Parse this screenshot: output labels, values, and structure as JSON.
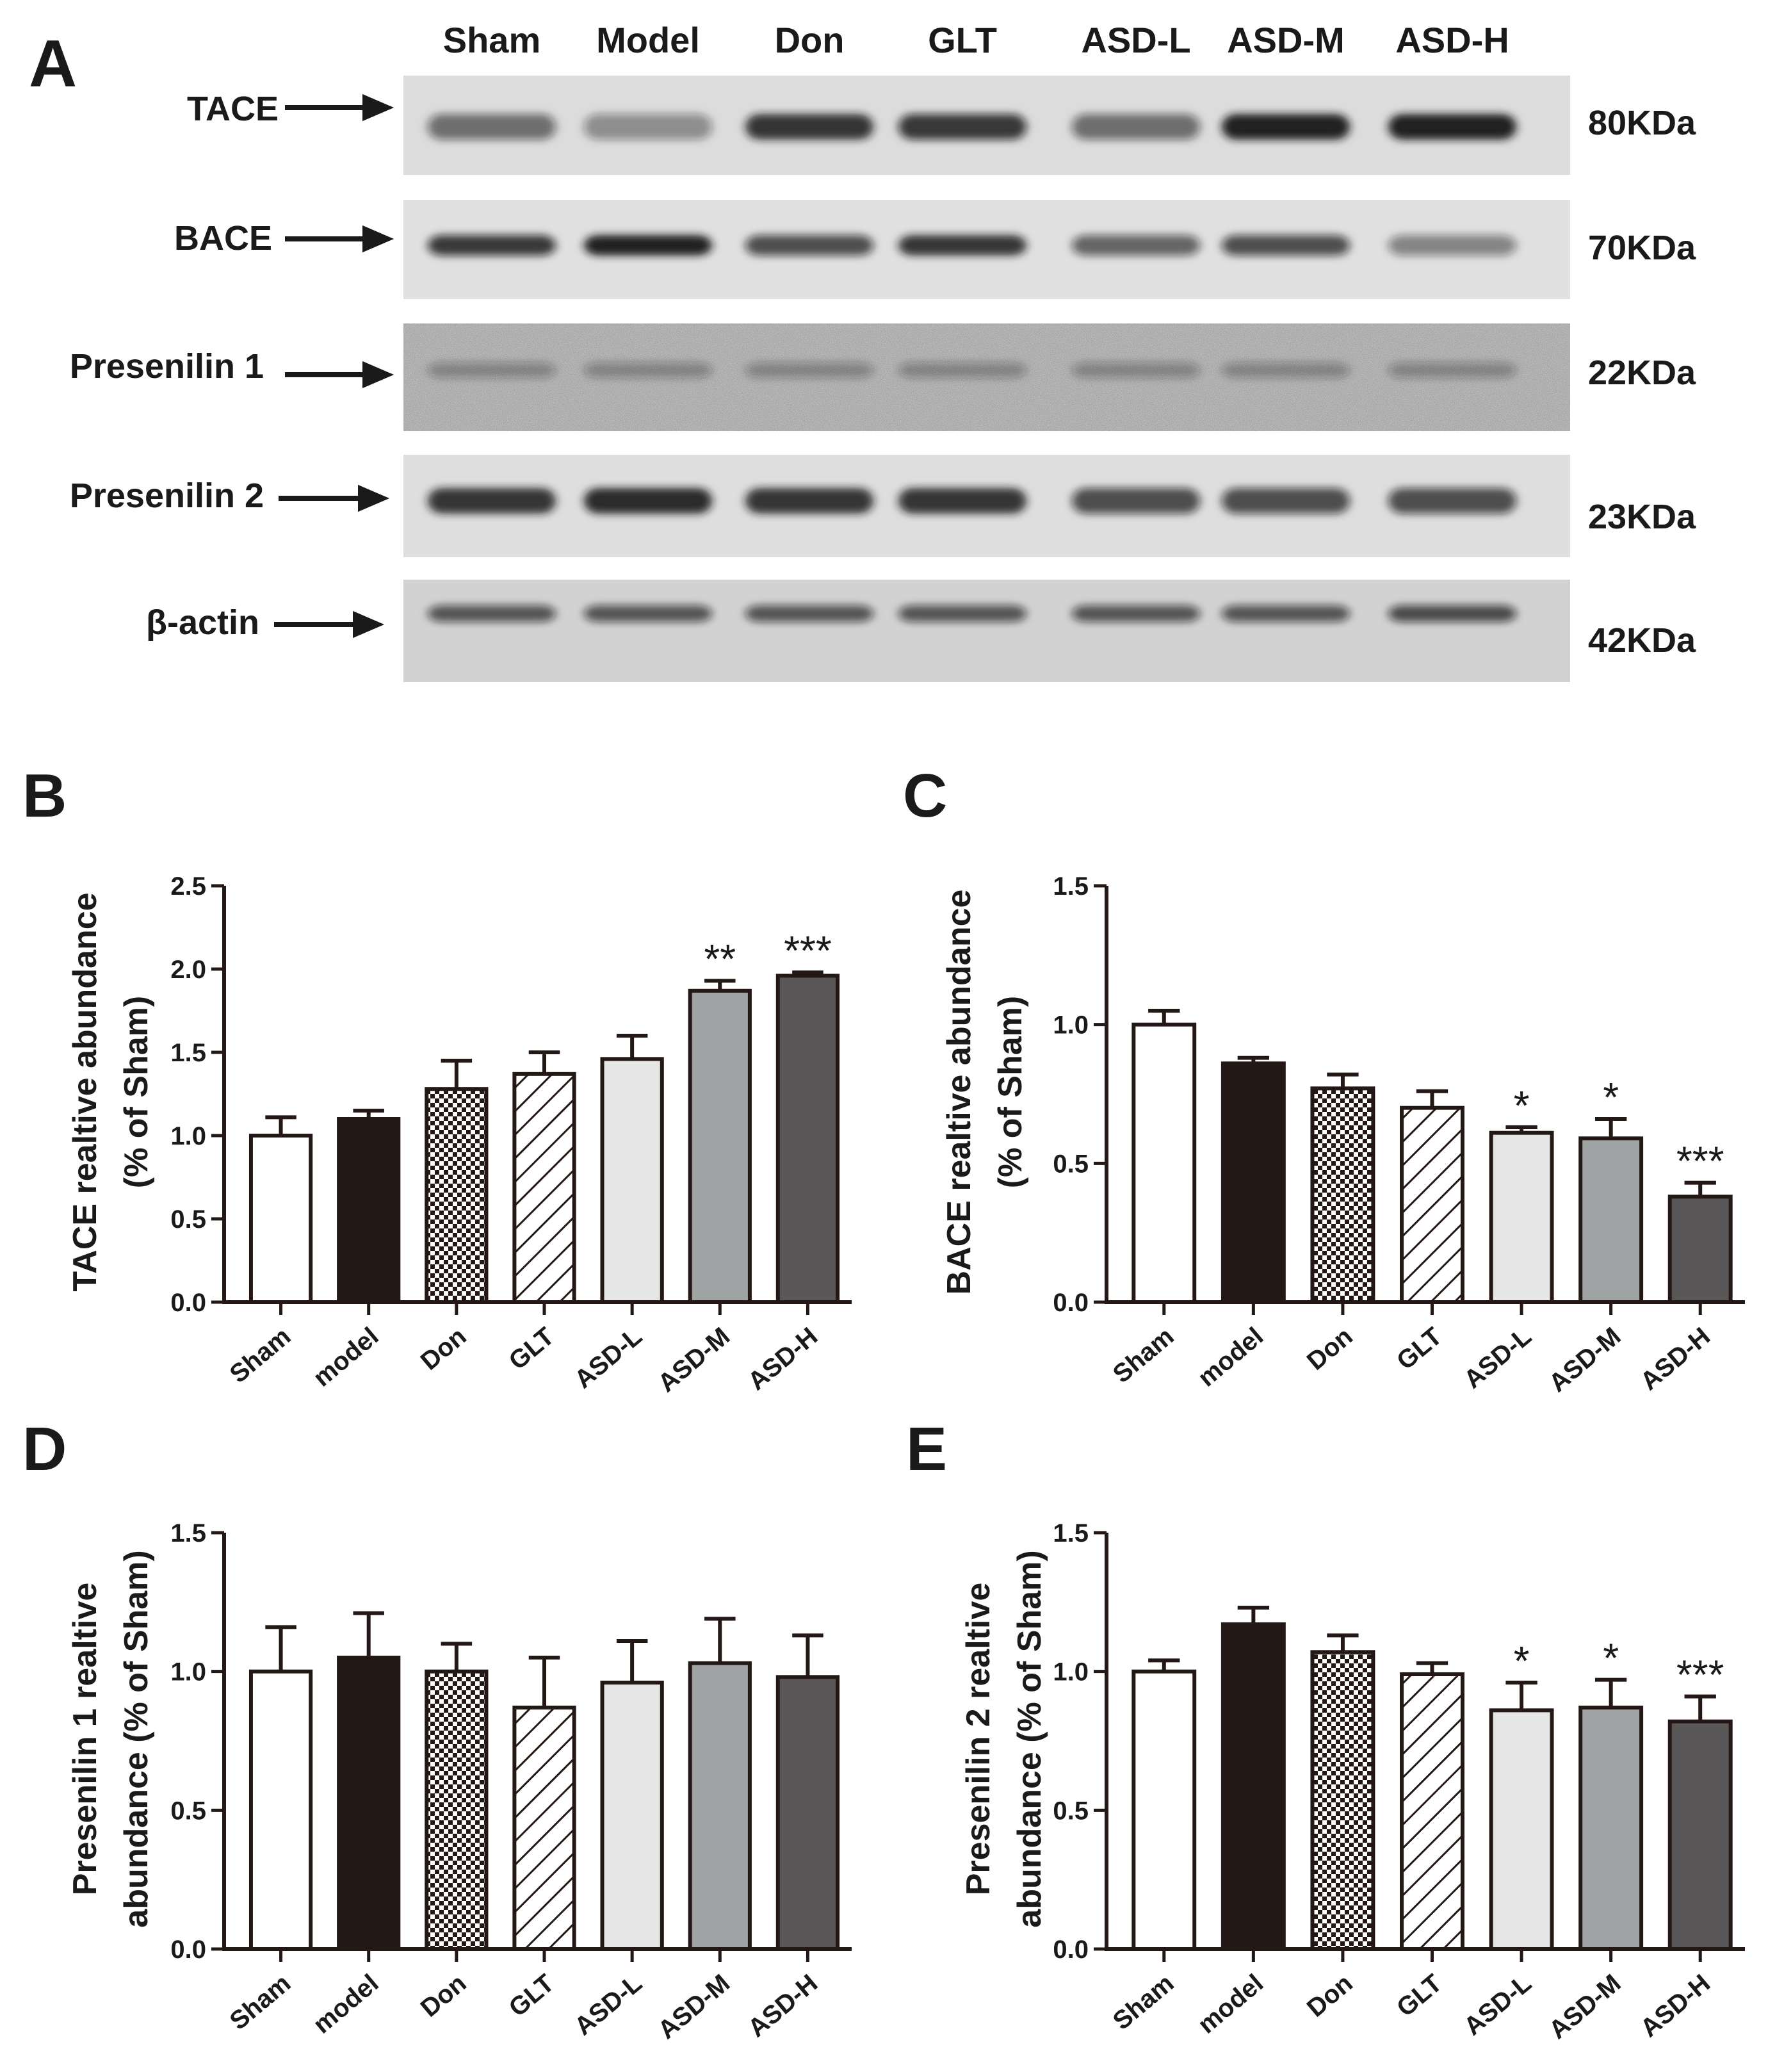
{
  "panel_a": {
    "letter": "A",
    "lanes": [
      "Sham",
      "Model",
      "Don",
      "GLT",
      "ASD-L",
      "ASD-M",
      "ASD-H"
    ],
    "rows": [
      {
        "protein": "TACE",
        "size": "80KDa"
      },
      {
        "protein": "BACE",
        "size": "70KDa"
      },
      {
        "protein": "Presenilin 1",
        "size": "22KDa"
      },
      {
        "protein": "Presenilin 2",
        "size": "23KDa"
      },
      {
        "protein": "β-actin",
        "size": "42KDa"
      }
    ]
  },
  "colors": {
    "Sham": "#ffffff",
    "model": "#231815",
    "Don": "checker",
    "GLT": "hatch",
    "ASD-L": "#e6e6e6",
    "ASD-M": "#a0a3a3",
    "ASD-H": "#595757"
  },
  "chart_data": [
    {
      "panel": "B",
      "type": "bar",
      "categories": [
        "Sham",
        "model",
        "Don",
        "GLT",
        "ASD-L",
        "ASD-M",
        "ASD-H"
      ],
      "values": [
        1.0,
        1.1,
        1.28,
        1.37,
        1.46,
        1.87,
        1.96
      ],
      "errors": [
        0.11,
        0.05,
        0.17,
        0.13,
        0.14,
        0.06,
        0.02
      ],
      "significance": [
        "",
        "",
        "",
        "",
        "",
        "**",
        "***"
      ],
      "ylabel_lines": [
        "TACE realtive abundance",
        "(% of Sham)"
      ],
      "ylim": [
        0,
        2.5
      ],
      "yticks": [
        "0.0",
        "0.5",
        "1.0",
        "1.5",
        "2.0",
        "2.5"
      ]
    },
    {
      "panel": "C",
      "type": "bar",
      "categories": [
        "Sham",
        "model",
        "Don",
        "GLT",
        "ASD-L",
        "ASD-M",
        "ASD-H"
      ],
      "values": [
        1.0,
        0.86,
        0.77,
        0.7,
        0.61,
        0.59,
        0.38
      ],
      "errors": [
        0.05,
        0.02,
        0.05,
        0.06,
        0.02,
        0.07,
        0.05
      ],
      "significance": [
        "",
        "",
        "",
        "",
        "*",
        "*",
        "***"
      ],
      "ylabel_lines": [
        "BACE realtive abundance",
        "(% of Sham)"
      ],
      "ylim": [
        0,
        1.5
      ],
      "yticks": [
        "0.0",
        "0.5",
        "1.0",
        "1.5"
      ]
    },
    {
      "panel": "D",
      "type": "bar",
      "categories": [
        "Sham",
        "model",
        "Don",
        "GLT",
        "ASD-L",
        "ASD-M",
        "ASD-H"
      ],
      "values": [
        1.0,
        1.05,
        1.0,
        0.87,
        0.96,
        1.03,
        0.98
      ],
      "errors": [
        0.16,
        0.16,
        0.1,
        0.18,
        0.15,
        0.16,
        0.15
      ],
      "significance": [
        "",
        "",
        "",
        "",
        "",
        "",
        ""
      ],
      "ylabel_lines": [
        "Presenilin 1 realtive",
        "abundance (% of Sham)"
      ],
      "ylim": [
        0,
        1.5
      ],
      "yticks": [
        "0.0",
        "0.5",
        "1.0",
        "1.5"
      ]
    },
    {
      "panel": "E",
      "type": "bar",
      "categories": [
        "Sham",
        "model",
        "Don",
        "GLT",
        "ASD-L",
        "ASD-M",
        "ASD-H"
      ],
      "values": [
        1.0,
        1.17,
        1.07,
        0.99,
        0.86,
        0.87,
        0.82
      ],
      "errors": [
        0.04,
        0.06,
        0.06,
        0.04,
        0.1,
        0.1,
        0.09
      ],
      "significance": [
        "",
        "",
        "",
        "",
        "*",
        "*",
        "***"
      ],
      "ylabel_lines": [
        "Presenilin 2 realtive",
        "abundance (% of Sham)"
      ],
      "ylim": [
        0,
        1.5
      ],
      "yticks": [
        "0.0",
        "0.5",
        "1.0",
        "1.5"
      ]
    }
  ]
}
